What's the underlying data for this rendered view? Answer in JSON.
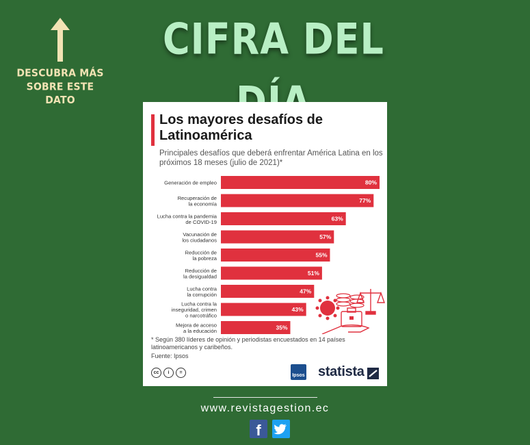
{
  "header": {
    "headline": "CIFRA DEL DÍA",
    "side_note": "DESCUBRA MÁS SOBRE ESTE DATO"
  },
  "infographic": {
    "title": "Los mayores desafíos de Latinoamérica",
    "subtitle": "Principales desafíos que deberá enfrentar América Latina en los próximos 18 meses (julio de 2021)*",
    "footnote": "* Según 380 líderes de opinión y periodistas encuestados en 14 países latinoamericanos y caribeños.",
    "source": "Fuente: Ipsos",
    "ipsos_logo": "Ipsos",
    "brand": "statista",
    "license_icons": [
      "cc",
      "i",
      "="
    ]
  },
  "chart_data": {
    "type": "bar",
    "orientation": "horizontal",
    "categories": [
      "Generación de empleo",
      "Recuperación de la economía",
      "Lucha contra la pandemia de COVID-19",
      "Vacunación de los ciudadanos",
      "Reducción de la pobreza",
      "Reducción de la desigualdad",
      "Lucha contra la corrupción",
      "Lucha contra la inseguridad, crimen o narcotráfico",
      "Mejora de acceso a la educación"
    ],
    "category_lines": [
      [
        "Generación de empleo"
      ],
      [
        "Recuperación de",
        "la economía"
      ],
      [
        "Lucha contra la pandemia",
        "de COVID-19"
      ],
      [
        "Vacunación de",
        "los ciudadanos"
      ],
      [
        "Reducción de",
        "la pobreza"
      ],
      [
        "Reducción de",
        "la desigualdad"
      ],
      [
        "Lucha contra",
        "la corrupción"
      ],
      [
        "Lucha contra la",
        "inseguridad, crimen",
        "o narcotráfico"
      ],
      [
        "Mejora de acceso",
        "a la educación"
      ]
    ],
    "values": [
      80,
      77,
      63,
      57,
      55,
      51,
      47,
      43,
      35
    ],
    "value_labels": [
      "80%",
      "77%",
      "63%",
      "57%",
      "55%",
      "51%",
      "47%",
      "43%",
      "35%"
    ],
    "unit": "%",
    "xlim": [
      0,
      80
    ],
    "grid": false,
    "bar_color": "#e0313e"
  },
  "footer": {
    "website": "www.revistagestion.ec",
    "social": [
      "f",
      "twitter-bird"
    ]
  },
  "colors": {
    "background": "#2f6b34",
    "headline": "#b8efc4",
    "side_note": "#f2e3b4",
    "accent": "#e0313e",
    "facebook": "#3b5998",
    "twitter": "#1da1f2"
  }
}
